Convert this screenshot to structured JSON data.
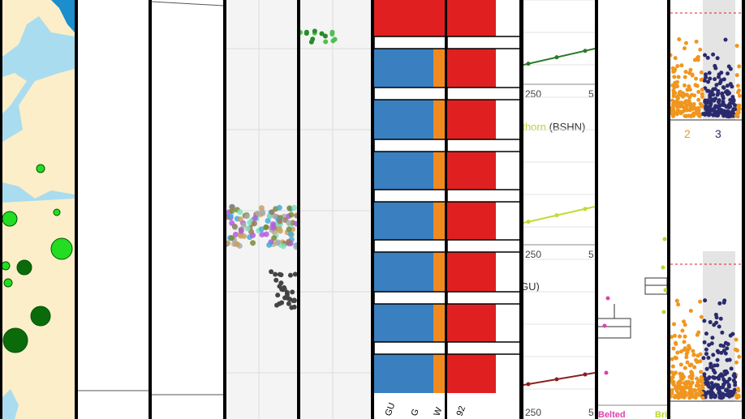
{
  "structure_left": {
    "labels": [
      "GU",
      "G",
      "W"
    ]
  },
  "structure_right": {
    "labels": [
      "92"
    ]
  },
  "line_panel": {
    "top_ticks": [
      "250",
      "5"
    ],
    "middle_title": {
      "name": "rthorn",
      "code": "(BSHN)"
    },
    "middle_ticks": [
      "250",
      "5"
    ],
    "bottom_title": "GU)",
    "bottom_ticks": [
      "250",
      "5"
    ]
  },
  "box_panel": {
    "labels": [
      "Belted",
      "Bri"
    ]
  },
  "manhattan_panel": {
    "labels": [
      "2",
      "3"
    ]
  }
}
